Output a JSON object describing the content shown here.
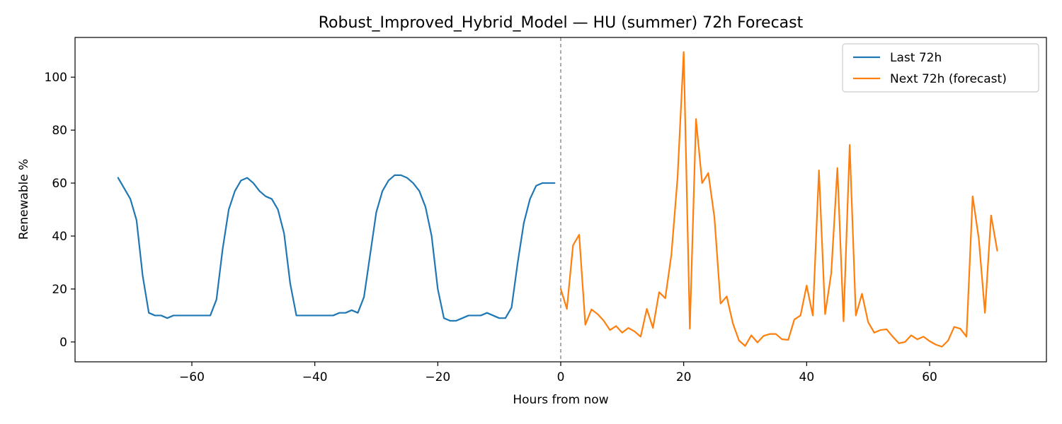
{
  "chart_data": {
    "type": "line",
    "title": "Robust_Improved_Hybrid_Model — HU (summer) 72h Forecast",
    "xlabel": "Hours from now",
    "ylabel": "Renewable %",
    "xlim": [
      -79,
      79
    ],
    "ylim": [
      -7.5,
      115
    ],
    "xticks": [
      -60,
      -40,
      -20,
      0,
      20,
      40,
      60
    ],
    "yticks": [
      0,
      20,
      40,
      60,
      80,
      100
    ],
    "grid": false,
    "legend_position": "top-right",
    "now_line": {
      "x": 0,
      "style": "dashed",
      "color": "#888888"
    },
    "series": [
      {
        "name": "Last 72h",
        "color": "#1f77b4",
        "x": [
          -72,
          -71,
          -70,
          -69,
          -68,
          -67,
          -66,
          -65,
          -64,
          -63,
          -62,
          -61,
          -60,
          -59,
          -58,
          -57,
          -56,
          -55,
          -54,
          -53,
          -52,
          -51,
          -50,
          -49,
          -48,
          -47,
          -46,
          -45,
          -44,
          -43,
          -42,
          -41,
          -40,
          -39,
          -38,
          -37,
          -36,
          -35,
          -34,
          -33,
          -32,
          -31,
          -30,
          -29,
          -28,
          -27,
          -26,
          -25,
          -24,
          -23,
          -22,
          -21,
          -20,
          -19,
          -18,
          -17,
          -16,
          -15,
          -14,
          -13,
          -12,
          -11,
          -10,
          -9,
          -8,
          -7,
          -6,
          -5,
          -4,
          -3,
          -2,
          -1
        ],
        "values": [
          62,
          58,
          54,
          46,
          25,
          11,
          10,
          10,
          9,
          10,
          10,
          10,
          10,
          10,
          10,
          10,
          16,
          35,
          50,
          57,
          61,
          62,
          60,
          57,
          55,
          54,
          50,
          41,
          22,
          10,
          10,
          10,
          10,
          10,
          10,
          10,
          11,
          11,
          12,
          11,
          17,
          33,
          49,
          57,
          61,
          63,
          63,
          62,
          60,
          57,
          51,
          40,
          20,
          9,
          8,
          8,
          9,
          10,
          10,
          10,
          11,
          10,
          9,
          9,
          13,
          30,
          45,
          54,
          59,
          60,
          60,
          60
        ]
      },
      {
        "name": "Next 72h (forecast)",
        "color": "#ff7f0e",
        "x": [
          0,
          1,
          2,
          3,
          4,
          5,
          6,
          7,
          8,
          9,
          10,
          11,
          12,
          13,
          14,
          15,
          16,
          17,
          18,
          19,
          20,
          21,
          22,
          23,
          24,
          25,
          26,
          27,
          28,
          29,
          30,
          31,
          32,
          33,
          34,
          35,
          36,
          37,
          38,
          39,
          40,
          41,
          42,
          43,
          44,
          45,
          46,
          47,
          48,
          49,
          50,
          51,
          52,
          53,
          54,
          55,
          56,
          57,
          58,
          59,
          60,
          61,
          62,
          63,
          64,
          65,
          66,
          67,
          68,
          69,
          70,
          71
        ],
        "values": [
          20,
          12.5,
          36.5,
          40.5,
          6.5,
          12.3,
          10.5,
          8,
          4.5,
          6,
          3.5,
          5.3,
          4,
          2,
          12.5,
          5.3,
          18.8,
          16.5,
          33,
          62,
          109.5,
          5,
          84.2,
          60,
          63.8,
          47,
          14.5,
          17.2,
          7,
          0.5,
          -1.5,
          2.5,
          -0.2,
          2.3,
          3,
          3,
          1,
          0.8,
          8.5,
          10,
          21.3,
          10,
          64.8,
          10.5,
          26,
          65.7,
          7.8,
          74.4,
          10,
          18.2,
          7.5,
          3.5,
          4.5,
          4.8,
          2,
          -0.5,
          0,
          2.5,
          1,
          2,
          0.3,
          -1,
          -1.8,
          0.5,
          5.7,
          5,
          2,
          55,
          39,
          11,
          47.8,
          34.5
        ]
      }
    ]
  }
}
